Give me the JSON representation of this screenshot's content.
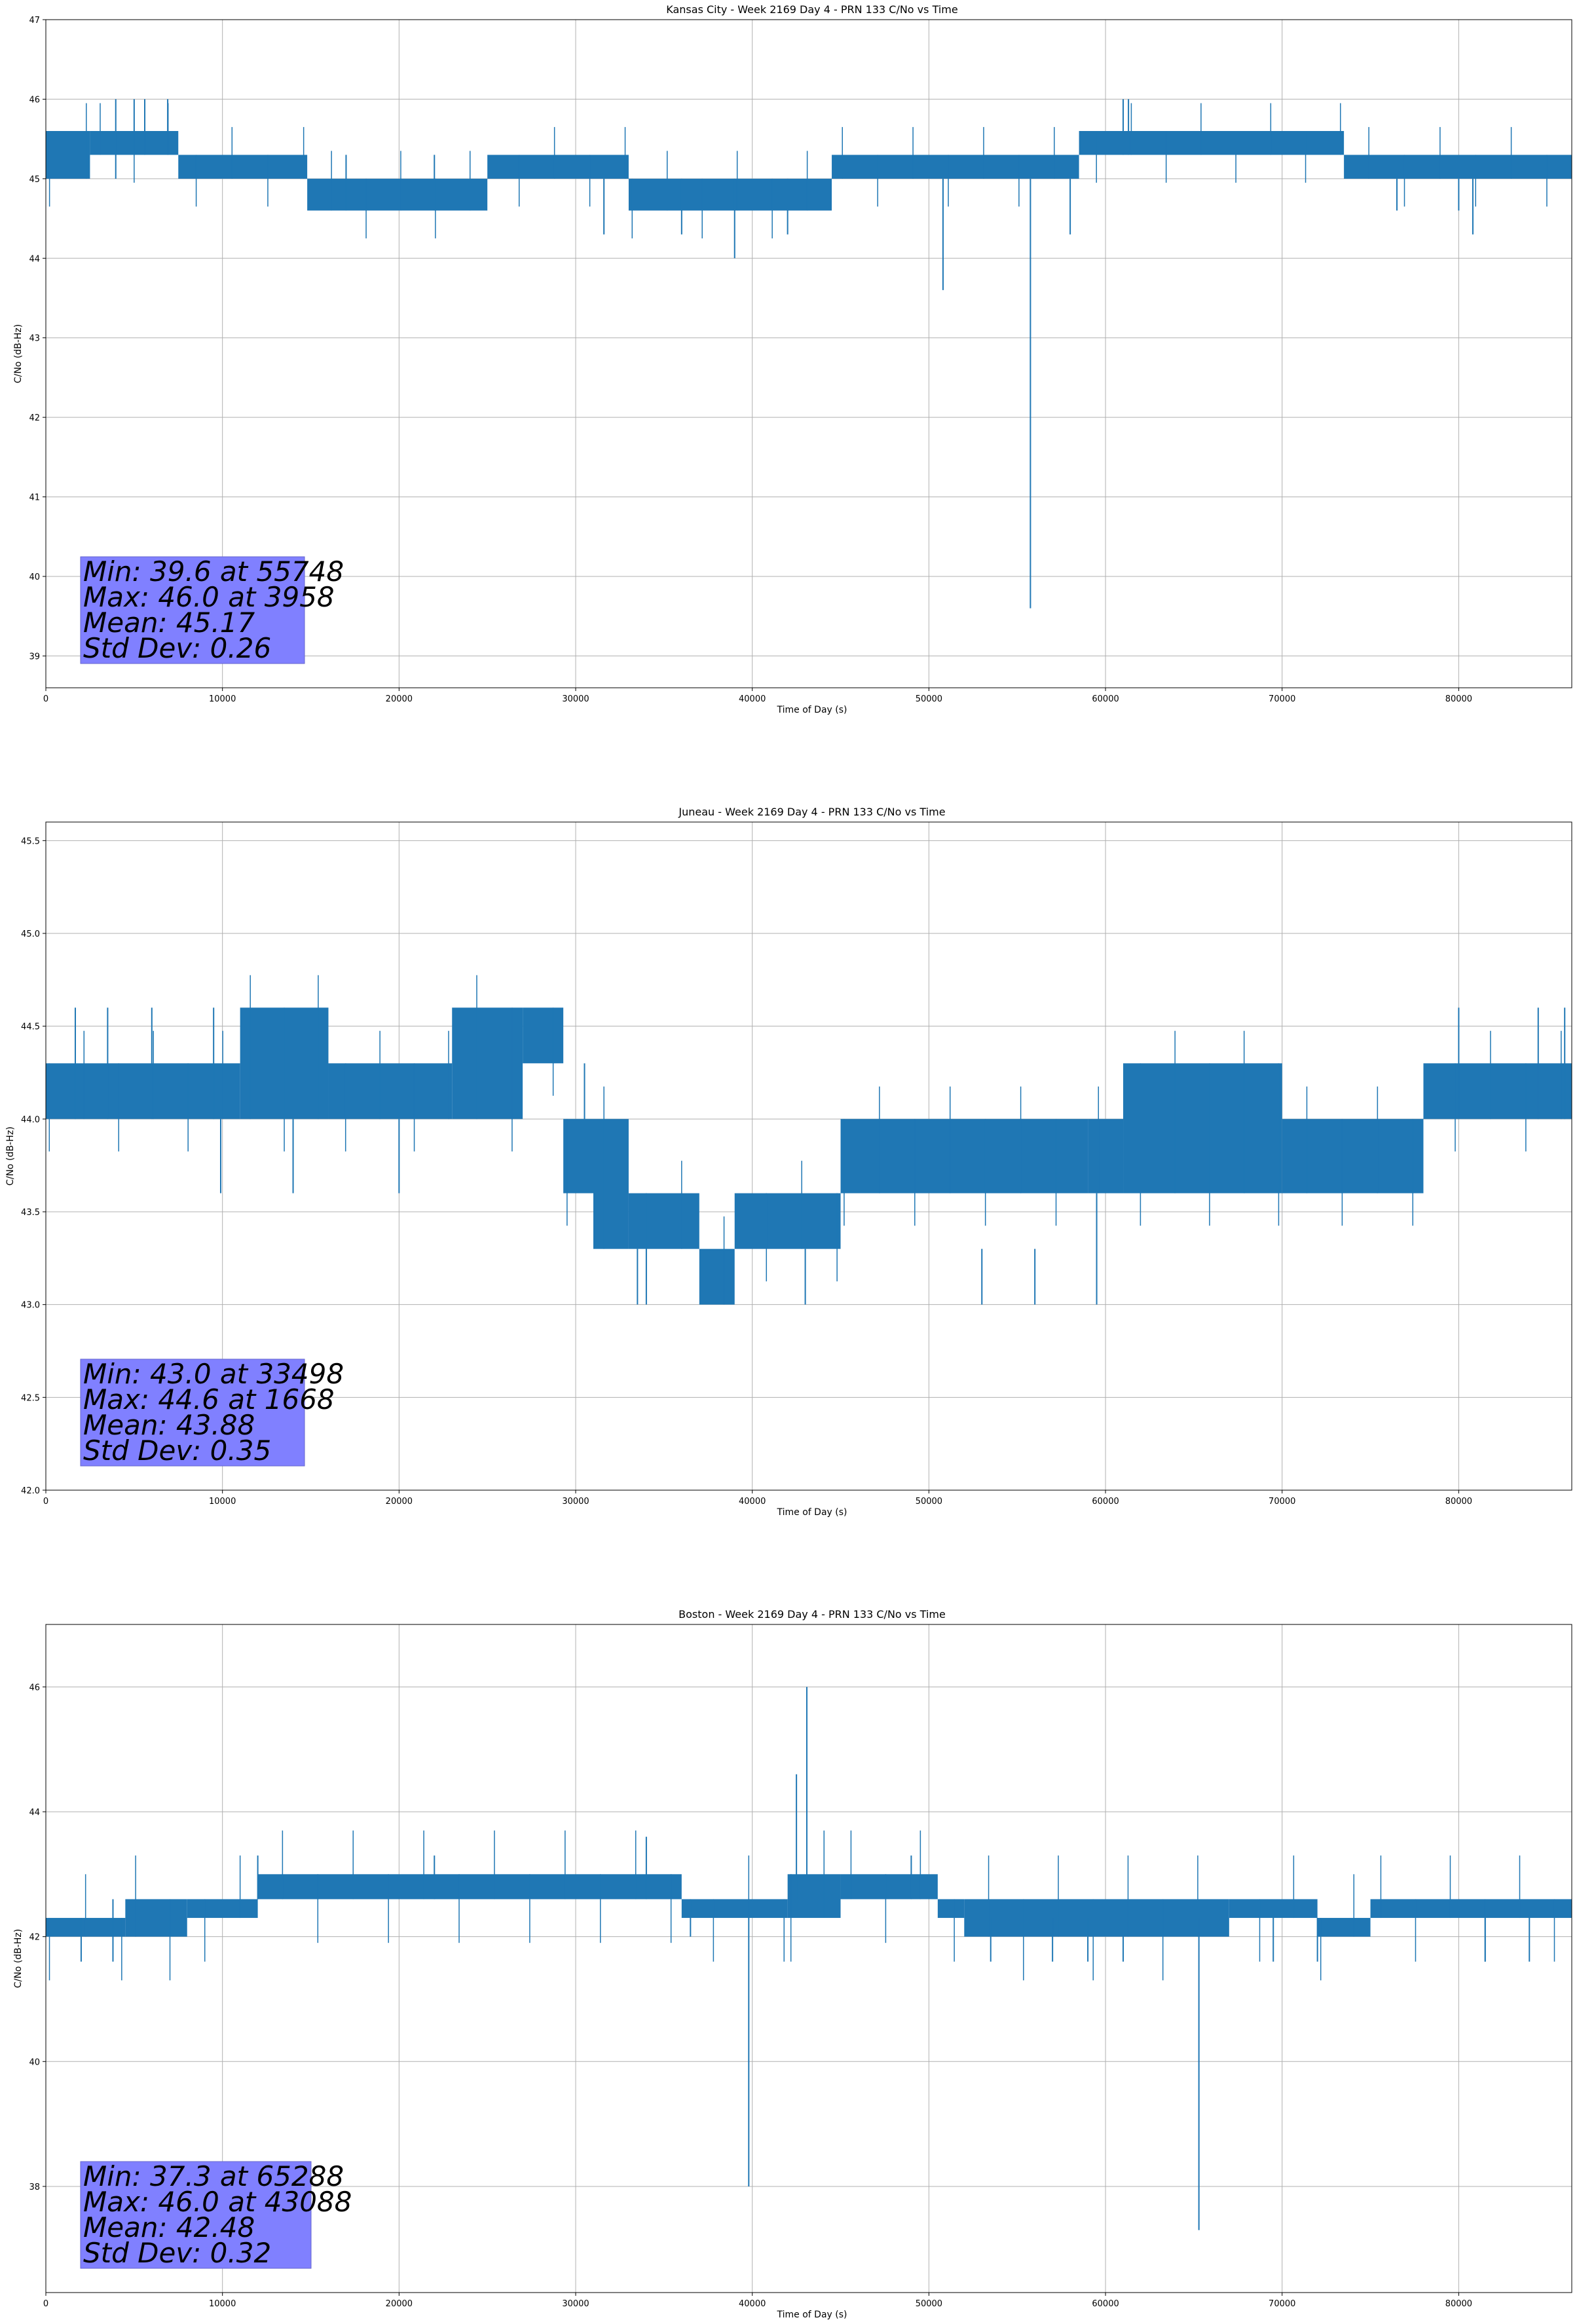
{
  "colors": {
    "line": "#1f77b4",
    "stats_box": "#8080ff",
    "grid": "#b0b0b0"
  },
  "chart_data": [
    {
      "type": "line",
      "title": "Kansas City - Week 2169 Day 4 - PRN 133 C/No vs Time",
      "xlabel": "Time of Day (s)",
      "ylabel": "C/No (dB-Hz)",
      "xlim": [
        0,
        86400
      ],
      "ylim": [
        38.6,
        47.0
      ],
      "xticks": [
        0,
        10000,
        20000,
        30000,
        40000,
        50000,
        60000,
        70000,
        80000
      ],
      "yticks": [
        39,
        40,
        41,
        42,
        43,
        44,
        45,
        46,
        47
      ],
      "ytick_labels": [
        "39",
        "40",
        "41",
        "42",
        "43",
        "44",
        "45",
        "46",
        "47"
      ],
      "grid": true,
      "stats_lines": [
        "Min: 39.6 at 55748",
        "Max: 46.0 at 3958",
        "Mean: 45.17",
        "Std Dev: 0.26"
      ],
      "series": [
        {
          "segments": [
            {
              "x0": 0,
              "x1": 2500,
              "low": 45.0,
              "high": 45.6
            },
            {
              "x0": 2500,
              "x1": 7500,
              "low": 45.3,
              "high": 45.6
            },
            {
              "x0": 7500,
              "x1": 14800,
              "low": 45.0,
              "high": 45.3
            },
            {
              "x0": 14800,
              "x1": 25000,
              "low": 44.6,
              "high": 45.0
            },
            {
              "x0": 25000,
              "x1": 33000,
              "low": 45.0,
              "high": 45.3
            },
            {
              "x0": 33000,
              "x1": 44500,
              "low": 44.6,
              "high": 45.0
            },
            {
              "x0": 44500,
              "x1": 58500,
              "low": 45.0,
              "high": 45.3
            },
            {
              "x0": 58500,
              "x1": 73500,
              "low": 45.3,
              "high": 45.6
            },
            {
              "x0": 73500,
              "x1": 86400,
              "low": 45.0,
              "high": 45.3
            }
          ],
          "spikes": [
            {
              "x": 3958,
              "low": 45.0,
              "high": 46.0
            },
            {
              "x": 5000,
              "low": 45.3,
              "high": 46.0
            },
            {
              "x": 5600,
              "low": 45.3,
              "high": 46.0
            },
            {
              "x": 6900,
              "low": 45.3,
              "high": 46.0
            },
            {
              "x": 17000,
              "low": 44.6,
              "high": 45.3
            },
            {
              "x": 22000,
              "low": 44.6,
              "high": 45.3
            },
            {
              "x": 31600,
              "low": 44.3,
              "high": 45.0
            },
            {
              "x": 36000,
              "low": 44.3,
              "high": 45.0
            },
            {
              "x": 39000,
              "low": 44.0,
              "high": 45.0
            },
            {
              "x": 42000,
              "low": 44.3,
              "high": 45.0
            },
            {
              "x": 50800,
              "low": 43.6,
              "high": 45.0
            },
            {
              "x": 55748,
              "low": 39.6,
              "high": 45.0
            },
            {
              "x": 58000,
              "low": 44.3,
              "high": 45.0
            },
            {
              "x": 61000,
              "low": 45.3,
              "high": 46.0
            },
            {
              "x": 61300,
              "low": 45.3,
              "high": 46.0
            },
            {
              "x": 76500,
              "low": 44.6,
              "high": 45.0
            },
            {
              "x": 80000,
              "low": 44.6,
              "high": 45.0
            },
            {
              "x": 80800,
              "low": 44.3,
              "high": 45.0
            }
          ]
        }
      ]
    },
    {
      "type": "line",
      "title": "Juneau - Week 2169 Day 4 - PRN 133 C/No vs Time",
      "xlabel": "Time of Day (s)",
      "ylabel": "C/No (dB-Hz)",
      "xlim": [
        0,
        86400
      ],
      "ylim": [
        42.0,
        45.6
      ],
      "xticks": [
        0,
        10000,
        20000,
        30000,
        40000,
        50000,
        60000,
        70000,
        80000
      ],
      "yticks": [
        42.0,
        42.5,
        43.0,
        43.5,
        44.0,
        44.5,
        45.0,
        45.5
      ],
      "ytick_labels": [
        "42.0",
        "42.5",
        "43.0",
        "43.5",
        "44.0",
        "44.5",
        "45.0",
        "45.5"
      ],
      "grid": true,
      "stats_lines": [
        "Min: 43.0 at 33498",
        "Max: 44.6 at 1668",
        "Mean: 43.88",
        "Std Dev: 0.35"
      ],
      "series": [
        {
          "segments": [
            {
              "x0": 0,
              "x1": 11000,
              "low": 44.0,
              "high": 44.3
            },
            {
              "x0": 11000,
              "x1": 16000,
              "low": 44.0,
              "high": 44.6
            },
            {
              "x0": 16000,
              "x1": 23000,
              "low": 44.0,
              "high": 44.3
            },
            {
              "x0": 23000,
              "x1": 27000,
              "low": 44.0,
              "high": 44.6
            },
            {
              "x0": 27000,
              "x1": 29300,
              "low": 44.3,
              "high": 44.6
            },
            {
              "x0": 29300,
              "x1": 31000,
              "low": 43.6,
              "high": 44.0
            },
            {
              "x0": 31000,
              "x1": 33000,
              "low": 43.3,
              "high": 44.0
            },
            {
              "x0": 33000,
              "x1": 37000,
              "low": 43.3,
              "high": 43.6
            },
            {
              "x0": 37000,
              "x1": 39000,
              "low": 43.0,
              "high": 43.3
            },
            {
              "x0": 39000,
              "x1": 45000,
              "low": 43.3,
              "high": 43.6
            },
            {
              "x0": 45000,
              "x1": 59000,
              "low": 43.6,
              "high": 44.0
            },
            {
              "x0": 59000,
              "x1": 61000,
              "low": 43.6,
              "high": 44.0
            },
            {
              "x0": 61000,
              "x1": 70000,
              "low": 43.6,
              "high": 44.3
            },
            {
              "x0": 70000,
              "x1": 78000,
              "low": 43.6,
              "high": 44.0
            },
            {
              "x0": 78000,
              "x1": 86400,
              "low": 44.0,
              "high": 44.3
            }
          ],
          "spikes": [
            {
              "x": 1668,
              "low": 44.0,
              "high": 44.6
            },
            {
              "x": 3500,
              "low": 44.0,
              "high": 44.6
            },
            {
              "x": 6000,
              "low": 44.0,
              "high": 44.6
            },
            {
              "x": 9500,
              "low": 44.0,
              "high": 44.6
            },
            {
              "x": 9900,
              "low": 43.6,
              "high": 44.0
            },
            {
              "x": 14000,
              "low": 43.6,
              "high": 44.0
            },
            {
              "x": 20000,
              "low": 43.6,
              "high": 44.0
            },
            {
              "x": 30500,
              "low": 44.0,
              "high": 44.3
            },
            {
              "x": 33498,
              "low": 43.0,
              "high": 43.3
            },
            {
              "x": 34000,
              "low": 43.0,
              "high": 43.3
            },
            {
              "x": 43000,
              "low": 43.0,
              "high": 43.3
            },
            {
              "x": 53000,
              "low": 43.0,
              "high": 43.3
            },
            {
              "x": 56000,
              "low": 43.0,
              "high": 43.3
            },
            {
              "x": 59500,
              "low": 43.0,
              "high": 43.6
            },
            {
              "x": 80000,
              "low": 44.0,
              "high": 44.6
            },
            {
              "x": 84500,
              "low": 44.0,
              "high": 44.6
            },
            {
              "x": 86000,
              "low": 44.0,
              "high": 44.6
            }
          ]
        }
      ]
    },
    {
      "type": "line",
      "title": "Boston - Week 2169 Day 4 - PRN 133 C/No vs Time",
      "xlabel": "Time of Day (s)",
      "ylabel": "C/No (dB-Hz)",
      "xlim": [
        0,
        86400
      ],
      "ylim": [
        36.3,
        47.0
      ],
      "xticks": [
        0,
        10000,
        20000,
        30000,
        40000,
        50000,
        60000,
        70000,
        80000
      ],
      "yticks": [
        38,
        40,
        42,
        44,
        46
      ],
      "ytick_labels": [
        "38",
        "40",
        "42",
        "44",
        "46"
      ],
      "grid": true,
      "stats_lines": [
        "Min: 37.3 at 65288",
        "Max: 46.0 at 43088",
        "Mean: 42.48",
        "Std Dev: 0.32"
      ],
      "series": [
        {
          "segments": [
            {
              "x0": 0,
              "x1": 4500,
              "low": 42.0,
              "high": 42.3
            },
            {
              "x0": 4500,
              "x1": 8000,
              "low": 42.0,
              "high": 42.6
            },
            {
              "x0": 8000,
              "x1": 12000,
              "low": 42.3,
              "high": 42.6
            },
            {
              "x0": 12000,
              "x1": 36000,
              "low": 42.6,
              "high": 43.0
            },
            {
              "x0": 36000,
              "x1": 42000,
              "low": 42.3,
              "high": 42.6
            },
            {
              "x0": 42000,
              "x1": 45000,
              "low": 42.3,
              "high": 43.0
            },
            {
              "x0": 45000,
              "x1": 50500,
              "low": 42.6,
              "high": 43.0
            },
            {
              "x0": 50500,
              "x1": 52000,
              "low": 42.3,
              "high": 42.6
            },
            {
              "x0": 52000,
              "x1": 67000,
              "low": 42.0,
              "high": 42.6
            },
            {
              "x0": 67000,
              "x1": 72000,
              "low": 42.3,
              "high": 42.6
            },
            {
              "x0": 72000,
              "x1": 75000,
              "low": 42.0,
              "high": 42.3
            },
            {
              "x0": 75000,
              "x1": 86400,
              "low": 42.3,
              "high": 42.6
            }
          ],
          "spikes": [
            {
              "x": 2000,
              "low": 41.6,
              "high": 42.3
            },
            {
              "x": 3800,
              "low": 41.6,
              "high": 42.6
            },
            {
              "x": 12000,
              "low": 42.6,
              "high": 43.3
            },
            {
              "x": 22000,
              "low": 42.6,
              "high": 43.3
            },
            {
              "x": 34000,
              "low": 42.6,
              "high": 43.6
            },
            {
              "x": 36500,
              "low": 42.0,
              "high": 42.6
            },
            {
              "x": 39800,
              "low": 38.0,
              "high": 42.3
            },
            {
              "x": 42500,
              "low": 42.6,
              "high": 44.6
            },
            {
              "x": 43088,
              "low": 42.6,
              "high": 46.0
            },
            {
              "x": 49000,
              "low": 42.6,
              "high": 43.3
            },
            {
              "x": 53500,
              "low": 41.6,
              "high": 42.3
            },
            {
              "x": 57000,
              "low": 41.6,
              "high": 42.3
            },
            {
              "x": 59000,
              "low": 41.6,
              "high": 42.3
            },
            {
              "x": 61000,
              "low": 41.6,
              "high": 42.3
            },
            {
              "x": 65288,
              "low": 37.3,
              "high": 42.3
            },
            {
              "x": 69500,
              "low": 41.6,
              "high": 42.3
            },
            {
              "x": 72000,
              "low": 41.6,
              "high": 42.3
            },
            {
              "x": 81500,
              "low": 41.6,
              "high": 42.3
            },
            {
              "x": 84000,
              "low": 41.6,
              "high": 42.3
            }
          ]
        }
      ]
    }
  ]
}
